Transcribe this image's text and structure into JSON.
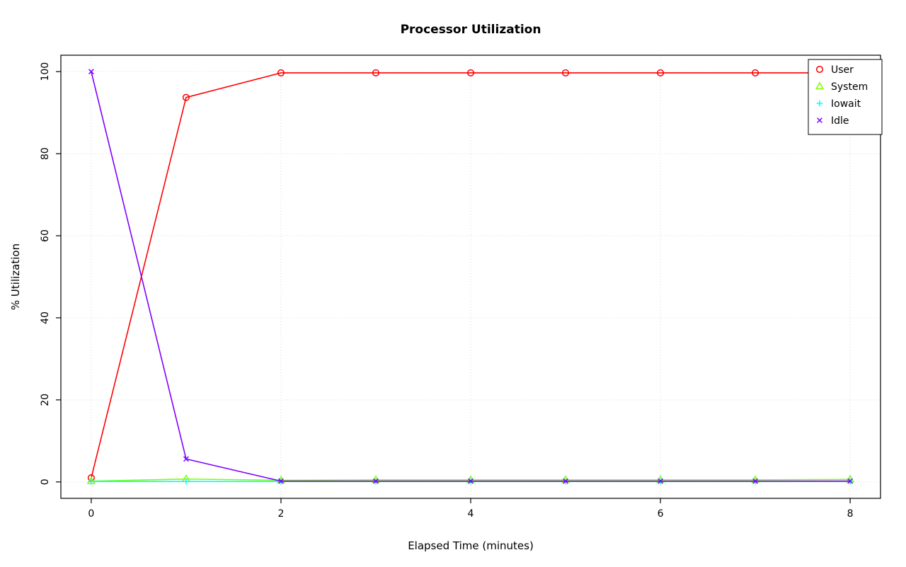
{
  "chart_data": {
    "type": "line",
    "title": "Processor Utilization",
    "xlabel": "Elapsed Time (minutes)",
    "ylabel": "% Utilization",
    "x": [
      0,
      1,
      2,
      3,
      4,
      5,
      6,
      7,
      8
    ],
    "series": [
      {
        "name": "User",
        "color": "#FF0000",
        "marker": "circle",
        "values": [
          1,
          93.7,
          99.7,
          99.7,
          99.7,
          99.7,
          99.7,
          99.7,
          99.7
        ]
      },
      {
        "name": "System",
        "color": "#80FF00",
        "marker": "triangle",
        "values": [
          0.2,
          0.7,
          0.4,
          0.5,
          0.5,
          0.5,
          0.5,
          0.5,
          0.6
        ]
      },
      {
        "name": "Iowait",
        "color": "#00FFFF",
        "marker": "plus",
        "values": [
          0.1,
          0.1,
          0.1,
          0.1,
          0.1,
          0.1,
          0.1,
          0.1,
          0.1
        ]
      },
      {
        "name": "Idle",
        "color": "#8000FF",
        "marker": "x",
        "values": [
          100,
          5.6,
          0.2,
          0.2,
          0.2,
          0.2,
          0.2,
          0.2,
          0.2
        ]
      }
    ],
    "xlim": [
      0,
      8
    ],
    "ylim": [
      0,
      100
    ],
    "xticks": [
      0,
      2,
      4,
      6,
      8
    ],
    "yticks": [
      0,
      20,
      40,
      60,
      80,
      100
    ],
    "grid": true,
    "grid_color": "#D9D9D9",
    "axis_color": "#000000",
    "legend_position": "top-right",
    "legend": [
      "User",
      "System",
      "Iowait",
      "Idle"
    ]
  }
}
